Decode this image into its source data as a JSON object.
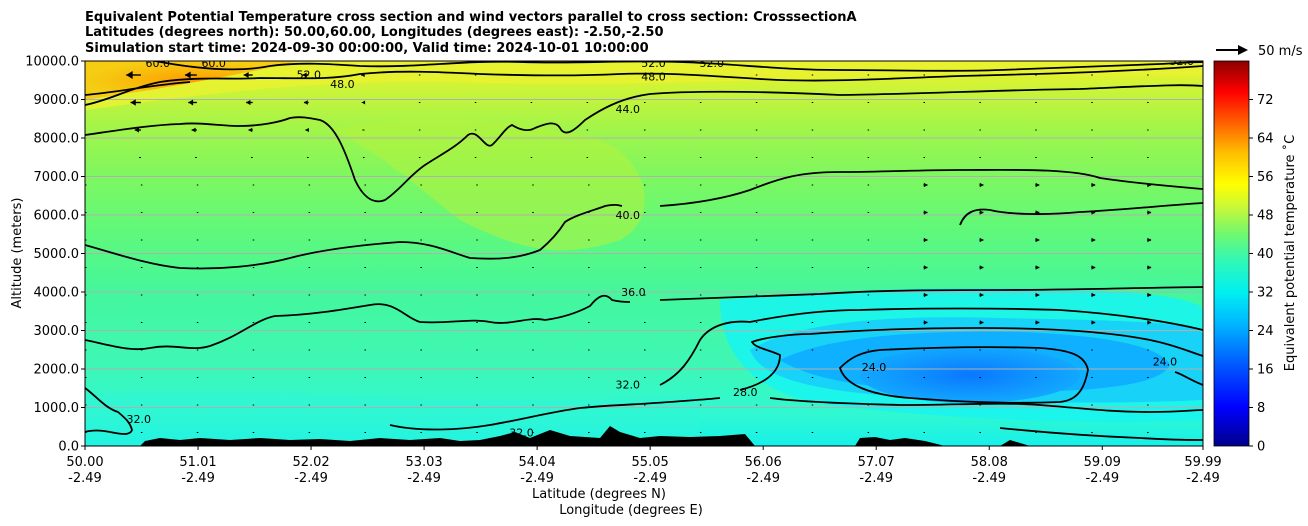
{
  "chart_data": {
    "type": "contour",
    "title_lines": [
      "Equivalent Potential Temperature cross section and wind vectors parallel to cross section: CrosssectionA",
      "Latitudes (degrees north): 50.00,60.00, Longitudes (degrees east): -2.50,-2.50",
      "Simulation start time: 2024-09-30 00:00:00, Valid time: 2024-10-01 10:00:00"
    ],
    "xlabel_lat": "Latitude (degrees N)",
    "xlabel_lon": "Longitude (degrees E)",
    "ylabel": "Altitude (meters)",
    "xlim": [
      50.0,
      59.99
    ],
    "ylim": [
      0,
      10000
    ],
    "x_ticks": [
      {
        "lat": "50.00",
        "lon": "-2.49"
      },
      {
        "lat": "51.01",
        "lon": "-2.49"
      },
      {
        "lat": "52.02",
        "lon": "-2.49"
      },
      {
        "lat": "53.03",
        "lon": "-2.49"
      },
      {
        "lat": "54.04",
        "lon": "-2.49"
      },
      {
        "lat": "55.05",
        "lon": "-2.49"
      },
      {
        "lat": "56.06",
        "lon": "-2.49"
      },
      {
        "lat": "57.07",
        "lon": "-2.49"
      },
      {
        "lat": "58.08",
        "lon": "-2.49"
      },
      {
        "lat": "59.09",
        "lon": "-2.49"
      },
      {
        "lat": "59.99",
        "lon": "-2.49"
      }
    ],
    "y_ticks": [
      "0.0",
      "1000.0",
      "2000.0",
      "3000.0",
      "4000.0",
      "5000.0",
      "6000.0",
      "7000.0",
      "8000.0",
      "9000.0",
      "10000.0"
    ],
    "colorbar": {
      "label": "Equivalent potential temperature ˚C",
      "range": [
        0,
        80
      ],
      "ticks": [
        "0",
        "8",
        "16",
        "24",
        "32",
        "40",
        "48",
        "56",
        "64",
        "72"
      ]
    },
    "wind_key": "50 m/s",
    "contour_labels": [
      {
        "text": "60.0",
        "lat": 50.65,
        "alt": 9950
      },
      {
        "text": "60.0",
        "lat": 51.15,
        "alt": 9950
      },
      {
        "text": "52.0",
        "lat": 52.0,
        "alt": 9650
      },
      {
        "text": "48.0",
        "lat": 52.3,
        "alt": 9400
      },
      {
        "text": "52.0",
        "lat": 55.08,
        "alt": 9950
      },
      {
        "text": "48.0",
        "lat": 55.08,
        "alt": 9600
      },
      {
        "text": "52.0",
        "lat": 55.6,
        "alt": 9950
      },
      {
        "text": "52.0",
        "lat": 59.8,
        "alt": 10000
      },
      {
        "text": "44.0",
        "lat": 54.85,
        "alt": 8750
      },
      {
        "text": "40.0",
        "lat": 54.85,
        "alt": 6000
      },
      {
        "text": "36.0",
        "lat": 54.9,
        "alt": 4000
      },
      {
        "text": "32.0",
        "lat": 54.85,
        "alt": 1600
      },
      {
        "text": "28.0",
        "lat": 55.9,
        "alt": 1400
      },
      {
        "text": "24.0",
        "lat": 57.05,
        "alt": 2050
      },
      {
        "text": "24.0",
        "lat": 59.65,
        "alt": 2200
      },
      {
        "text": "32.0",
        "lat": 50.48,
        "alt": 700
      },
      {
        "text": "32.0",
        "lat": 53.9,
        "alt": 350
      }
    ]
  }
}
